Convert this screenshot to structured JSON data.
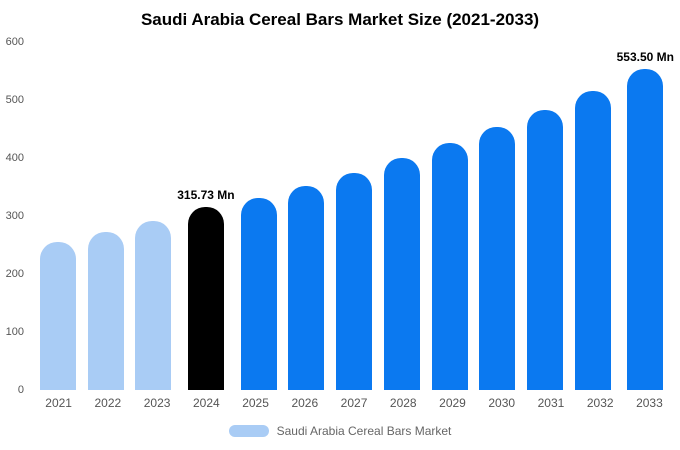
{
  "title": "Saudi Arabia Cereal Bars Market Size (2021-2033)",
  "legend": {
    "label": "Saudi Arabia Cereal Bars Market",
    "swatch_color": "#A9CCF5"
  },
  "colors": {
    "light_blue": "#A9CCF5",
    "blue": "#0B79F0",
    "black": "#000000",
    "tick_text": "#555555"
  },
  "chart_data": {
    "type": "bar",
    "title": "Saudi Arabia Cereal Bars Market Size (2021-2033)",
    "xlabel": "",
    "ylabel": "",
    "ylim": [
      0,
      600
    ],
    "yticks": [
      0,
      100,
      200,
      300,
      400,
      500,
      600
    ],
    "grid": false,
    "legend_position": "bottom",
    "categories": [
      "2021",
      "2022",
      "2023",
      "2024",
      "2025",
      "2026",
      "2027",
      "2028",
      "2029",
      "2030",
      "2031",
      "2032",
      "2033"
    ],
    "values": [
      255,
      272,
      291,
      315.73,
      331,
      352,
      375,
      400,
      426,
      453,
      482,
      515,
      553.5
    ],
    "bar_colors": [
      "#A9CCF5",
      "#A9CCF5",
      "#A9CCF5",
      "#000000",
      "#0B79F0",
      "#0B79F0",
      "#0B79F0",
      "#0B79F0",
      "#0B79F0",
      "#0B79F0",
      "#0B79F0",
      "#0B79F0",
      "#0B79F0"
    ],
    "annotations": [
      {
        "category": "2024",
        "text": "315.73 Mn"
      },
      {
        "category": "2033",
        "text": "553.50 Mn"
      }
    ]
  }
}
